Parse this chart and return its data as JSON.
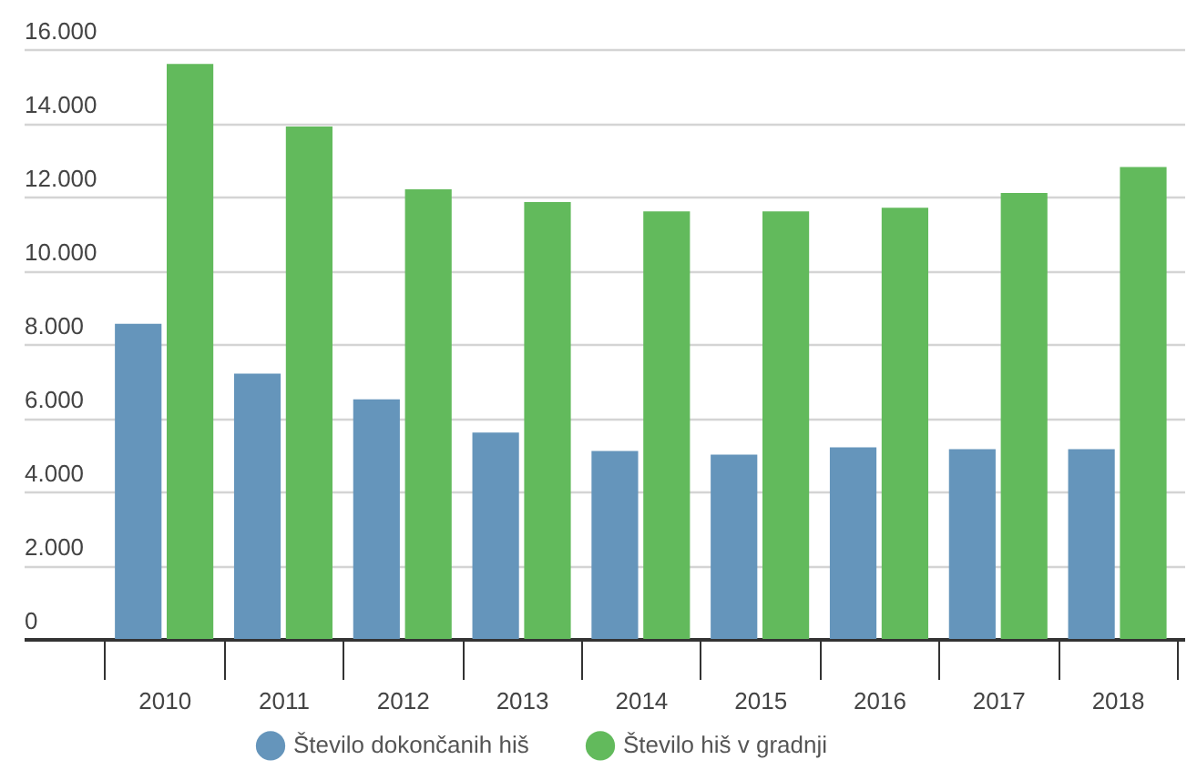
{
  "chart_data": {
    "type": "bar",
    "categories": [
      "2010",
      "2011",
      "2012",
      "2013",
      "2014",
      "2015",
      "2016",
      "2017",
      "2018"
    ],
    "series": [
      {
        "name": "Število dokončanih hiš",
        "color": "#6595bb",
        "values": [
          8550,
          7200,
          6500,
          5600,
          5100,
          5000,
          5200,
          5150,
          5150
        ]
      },
      {
        "name": "Število hiš v gradnji",
        "color": "#62ba5c",
        "values": [
          15600,
          13900,
          12200,
          11850,
          11600,
          11600,
          11700,
          12100,
          12800
        ]
      }
    ],
    "ylim": [
      0,
      16000
    ],
    "yticks": [
      {
        "value": 0,
        "label": "0"
      },
      {
        "value": 2000,
        "label": "2.000"
      },
      {
        "value": 4000,
        "label": "4.000"
      },
      {
        "value": 6000,
        "label": "6.000"
      },
      {
        "value": 8000,
        "label": "8.000"
      },
      {
        "value": 10000,
        "label": "10.000"
      },
      {
        "value": 12000,
        "label": "12.000"
      },
      {
        "value": 14000,
        "label": "14.000"
      },
      {
        "value": 16000,
        "label": "16.000"
      }
    ],
    "grid": "y",
    "legend": "bottom"
  }
}
